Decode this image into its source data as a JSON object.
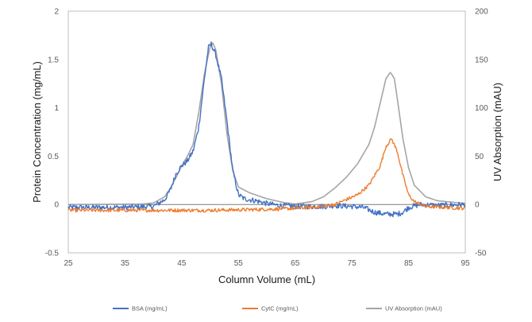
{
  "chart_data": {
    "type": "line",
    "xlabel": "Column Volume (mL)",
    "ylabel": "Protein Concentration (mg/mL)",
    "y2label": "UV Absorption (mAU)",
    "xlim": [
      25,
      95
    ],
    "ylim": [
      -0.5,
      2
    ],
    "y2lim": [
      -50,
      200
    ],
    "x_ticks": [
      "25",
      "35",
      "45",
      "55",
      "65",
      "75",
      "85",
      "95"
    ],
    "y_ticks": [
      "-0.5",
      "0",
      "0.5",
      "1",
      "1.5",
      "2"
    ],
    "y2_ticks": [
      "-50",
      "0",
      "50",
      "100",
      "150",
      "200"
    ],
    "grid": false,
    "zero_line": true,
    "legend_position": "bottom",
    "series": [
      {
        "name": "BSA (mg/mL)",
        "axis": "left",
        "color": "#4472C4",
        "points": [
          [
            25,
            -0.03
          ],
          [
            30,
            -0.03
          ],
          [
            35,
            -0.03
          ],
          [
            40,
            -0.02
          ],
          [
            42,
            0.05
          ],
          [
            43,
            0.15
          ],
          [
            44,
            0.32
          ],
          [
            45,
            0.4
          ],
          [
            46,
            0.45
          ],
          [
            47,
            0.55
          ],
          [
            48,
            0.8
          ],
          [
            49,
            1.3
          ],
          [
            49.7,
            1.62
          ],
          [
            50.2,
            1.66
          ],
          [
            51,
            1.55
          ],
          [
            52,
            1.3
          ],
          [
            53,
            0.85
          ],
          [
            54,
            0.35
          ],
          [
            55,
            0.1
          ],
          [
            56,
            0.06
          ],
          [
            57,
            0.05
          ],
          [
            58,
            0.04
          ],
          [
            60,
            0.01
          ],
          [
            62,
            -0.01
          ],
          [
            65,
            -0.02
          ],
          [
            70,
            -0.02
          ],
          [
            72,
            -0.01
          ],
          [
            75,
            -0.02
          ],
          [
            77,
            -0.03
          ],
          [
            79,
            -0.08
          ],
          [
            81,
            -0.1
          ],
          [
            83,
            -0.1
          ],
          [
            84,
            -0.08
          ],
          [
            85,
            -0.03
          ],
          [
            87,
            0.0
          ],
          [
            90,
            -0.01
          ],
          [
            95,
            0.0
          ]
        ],
        "noise": 0.028
      },
      {
        "name": "CytC (mg/mL)",
        "axis": "left",
        "color": "#ED7D31",
        "points": [
          [
            25,
            -0.06
          ],
          [
            40,
            -0.06
          ],
          [
            50,
            -0.06
          ],
          [
            60,
            -0.05
          ],
          [
            65,
            -0.04
          ],
          [
            70,
            -0.02
          ],
          [
            72,
            0.0
          ],
          [
            74,
            0.05
          ],
          [
            76,
            0.1
          ],
          [
            78,
            0.2
          ],
          [
            79,
            0.3
          ],
          [
            80,
            0.4
          ],
          [
            81,
            0.6
          ],
          [
            82,
            0.68
          ],
          [
            83,
            0.55
          ],
          [
            84,
            0.3
          ],
          [
            85,
            0.1
          ],
          [
            86,
            0.03
          ],
          [
            88,
            -0.02
          ],
          [
            95,
            -0.04
          ]
        ],
        "noise": 0.018
      },
      {
        "name": "UV Absorption (mAU)",
        "axis": "right",
        "color": "#A5A5A5",
        "points": [
          [
            25,
            0
          ],
          [
            38,
            0.5
          ],
          [
            40,
            1.5
          ],
          [
            42,
            8
          ],
          [
            43,
            17
          ],
          [
            44,
            28
          ],
          [
            45,
            40
          ],
          [
            46,
            50
          ],
          [
            47,
            62
          ],
          [
            48,
            95
          ],
          [
            49,
            135
          ],
          [
            50,
            163
          ],
          [
            50.5,
            167
          ],
          [
            51,
            160
          ],
          [
            52,
            125
          ],
          [
            53,
            72
          ],
          [
            54,
            35
          ],
          [
            55,
            18
          ],
          [
            57,
            12
          ],
          [
            60,
            6
          ],
          [
            63,
            2
          ],
          [
            65,
            0.5
          ],
          [
            68,
            3
          ],
          [
            70,
            8
          ],
          [
            72,
            17
          ],
          [
            74,
            28
          ],
          [
            76,
            42
          ],
          [
            78,
            62
          ],
          [
            79,
            80
          ],
          [
            80,
            105
          ],
          [
            81,
            130
          ],
          [
            81.8,
            137
          ],
          [
            82.5,
            130
          ],
          [
            83,
            110
          ],
          [
            84,
            68
          ],
          [
            85,
            38
          ],
          [
            86,
            20
          ],
          [
            88,
            8
          ],
          [
            90,
            4
          ],
          [
            95,
            1
          ]
        ],
        "noise": 0
      }
    ]
  }
}
